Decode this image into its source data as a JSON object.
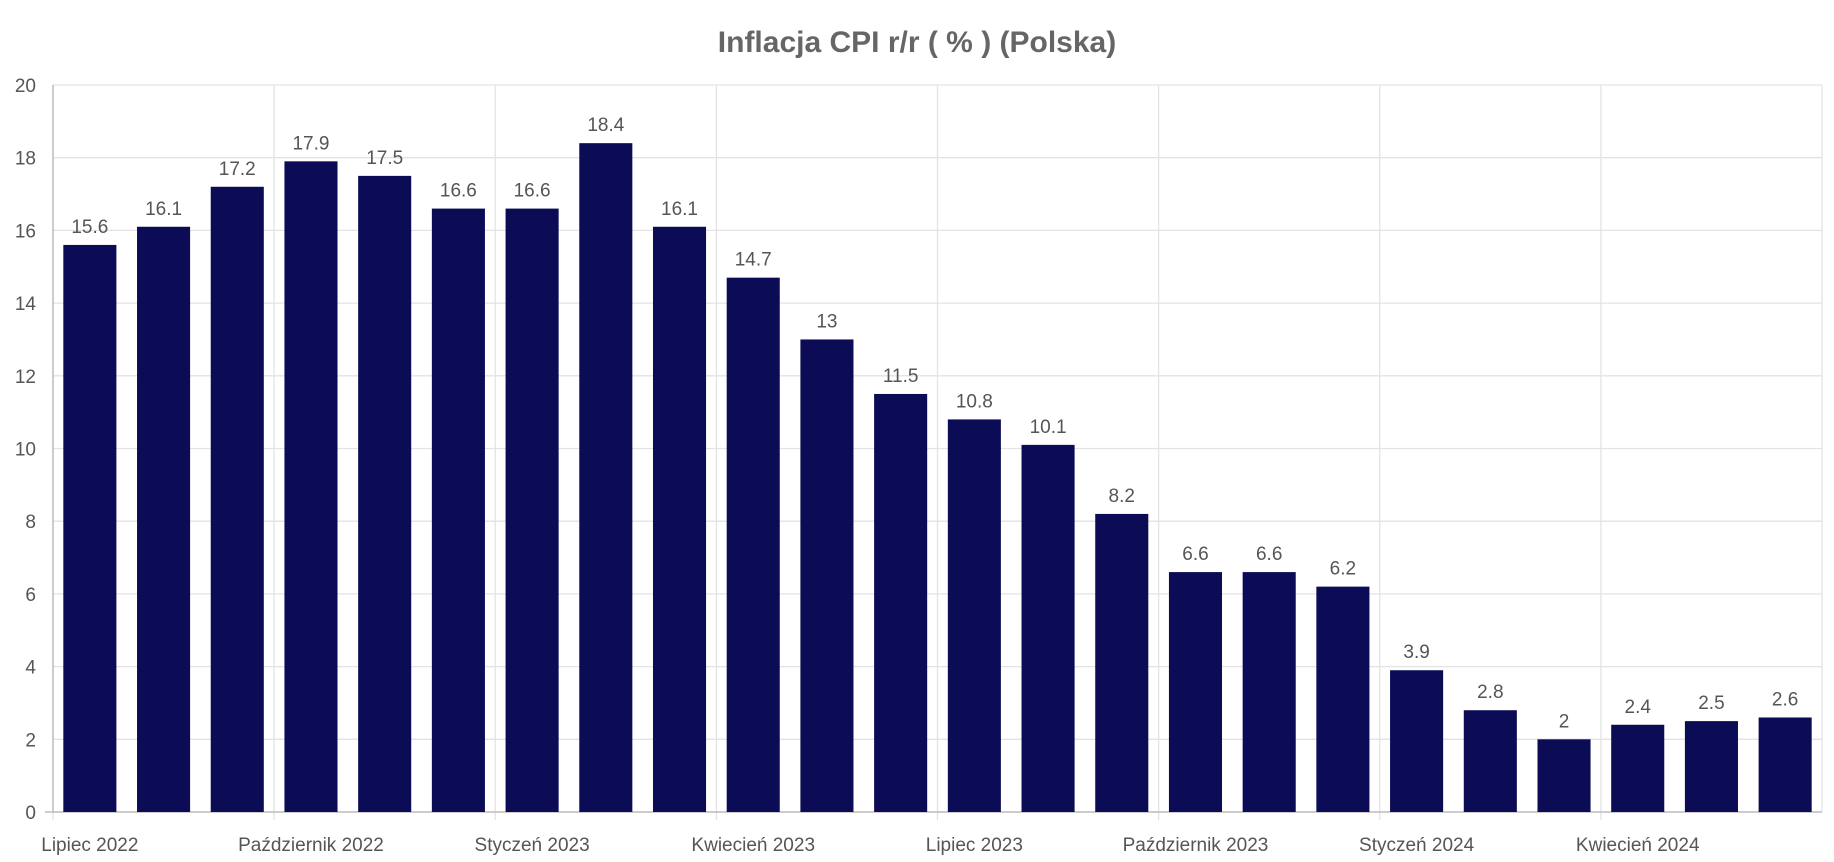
{
  "chart_data": {
    "type": "bar",
    "title": "Inflacja CPI r/r ( % ) (Polska)",
    "xlabel": "",
    "ylabel": "",
    "ylim": [
      0,
      20
    ],
    "yticks": [
      0,
      2,
      4,
      6,
      8,
      10,
      12,
      14,
      16,
      18,
      20
    ],
    "grid": true,
    "bar_color": "#0b0b56",
    "x_tick_labels": [
      {
        "index": 0,
        "label": "Lipiec 2022"
      },
      {
        "index": 3,
        "label": "Październik 2022"
      },
      {
        "index": 6,
        "label": "Styczeń 2023"
      },
      {
        "index": 9,
        "label": "Kwiecień 2023"
      },
      {
        "index": 12,
        "label": "Lipiec 2023"
      },
      {
        "index": 15,
        "label": "Październik 2023"
      },
      {
        "index": 18,
        "label": "Styczeń 2024"
      },
      {
        "index": 21,
        "label": "Kwiecień 2024"
      }
    ],
    "values": [
      15.6,
      16.1,
      17.2,
      17.9,
      17.5,
      16.6,
      16.6,
      18.4,
      16.1,
      14.7,
      13,
      11.5,
      10.8,
      10.1,
      8.2,
      6.6,
      6.6,
      6.2,
      3.9,
      2.8,
      2,
      2.4,
      2.5,
      2.6
    ]
  }
}
